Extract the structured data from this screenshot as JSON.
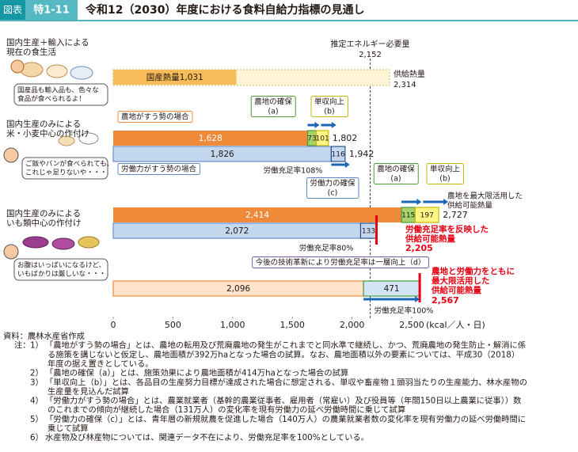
{
  "header": {
    "badge_label": "図表",
    "badge_number": "特1-11",
    "title": "令和12（2030）年度における食料自給力指標の見通し"
  },
  "panels": [
    {
      "label": [
        "国内生産＋輸入による",
        "現在の食生活"
      ],
      "speech": [
        "国産品も輸入品も、色々な",
        "食品が食べられるよ！"
      ]
    },
    {
      "label": [
        "国内生産のみによる",
        "米・小麦中心の作付け"
      ],
      "speech": [
        "ご飯やパンが食べられても、",
        "これじゃ足りないや・・・"
      ]
    },
    {
      "label": [
        "国内生産のみによる",
        "いも類中心の作付け"
      ],
      "speech": [
        "お腹はいっぱいになるけど、",
        "いもばかりは厳しいな・・・"
      ]
    }
  ],
  "chart_data": {
    "type": "bar",
    "xlim": [
      0,
      2500
    ],
    "xticks": [
      0,
      500,
      {
        "value": 1000,
        "label": "1,000"
      },
      {
        "value": 1500,
        "label": "1,500"
      },
      {
        "value": 2000,
        "label": "2,000"
      },
      {
        "value": 2500,
        "label": "2,500"
      }
    ],
    "x_label": "(kcal／人・日)",
    "reference": {
      "label": "推定エネルギー必要量",
      "value": 2152,
      "value_label": "2,152"
    },
    "bars": [
      {
        "segments": [
          {
            "value": 1031,
            "label": "国産熱量1,031",
            "color": "#f7bb59"
          }
        ],
        "supply": {
          "name": "供給熱量",
          "value": 2314,
          "label": "2,314",
          "color": "#fdf5d6",
          "border": "#d9b35e"
        }
      },
      {
        "segments": [
          {
            "value": 1628,
            "label": "1,628",
            "color": "#ef8a3a"
          },
          {
            "value": 73,
            "label": "73",
            "color": "#a6d26a",
            "border": "#4e9a2f"
          },
          {
            "value": 101,
            "label": "101",
            "color": "#fff685",
            "border": "#c9b800"
          }
        ],
        "total": {
          "value": 1802,
          "label": "1,802"
        }
      },
      {
        "segments": [
          {
            "value": 1826,
            "label": "1,826",
            "color": "#c3d7ef",
            "border": "#6a8fc7"
          },
          {
            "value": 116,
            "label": "116",
            "color": "#c3d7ef",
            "border": "#2c4f8c"
          }
        ],
        "total": {
          "value": 1942,
          "label": "1,942"
        }
      },
      {
        "segments": [
          {
            "value": 2414,
            "label": "2,414",
            "color": "#ef8a3a"
          },
          {
            "value": 115,
            "label": "115",
            "color": "#a6d26a",
            "border": "#4e9a2f"
          },
          {
            "value": 197,
            "label": "197",
            "color": "#fff685",
            "border": "#c9b800"
          }
        ],
        "total": {
          "value": 2727,
          "label": "2,727"
        }
      },
      {
        "segments": [
          {
            "value": 2072,
            "label": "2,072",
            "color": "#c3d7ef",
            "border": "#6a8fc7"
          },
          {
            "value": 133,
            "label": "133",
            "color": "#c3d7ef",
            "border": "#2c4f8c"
          }
        ],
        "total": {
          "value": 2205,
          "label": "2,205",
          "color": "#e60012"
        }
      },
      {
        "segments": [
          {
            "value": 2096,
            "label": "2,096",
            "color": "#fde3cc",
            "border": "#ef8a3a"
          },
          {
            "value": 471,
            "label": "471",
            "color": "#d3e4f5",
            "border": "#3f9a3a"
          }
        ],
        "total": {
          "value": 2567,
          "label": "2,567",
          "color": "#e60012"
        }
      }
    ],
    "annotations": [
      {
        "lines": [
          "農地がすう勢の場合"
        ]
      },
      {
        "lines": [
          "労働力がすう勢の場合"
        ]
      },
      {
        "lines": [
          "農地の確保",
          "(a)"
        ]
      },
      {
        "lines": [
          "単収向上",
          "(b)"
        ]
      },
      {
        "lines": [
          "労働充足率108%"
        ]
      },
      {
        "lines": [
          "労働力の確保",
          "(c)"
        ]
      },
      {
        "lines": [
          "農地の確保",
          "(a)"
        ]
      },
      {
        "lines": [
          "単収向上",
          "(b)"
        ]
      },
      {
        "lines": [
          "農地を最大限活用した",
          "供給可能熱量"
        ]
      },
      {
        "lines": [
          "労働充足率を反映した",
          "供給可能熱量"
        ]
      },
      {
        "lines": [
          "労働充足率80%"
        ]
      },
      {
        "lines": [
          "今後の技術革新により労働充足率は一層向上（d）"
        ]
      },
      {
        "lines": [
          "農地と労働力をともに",
          "最大限活用した",
          "供給可能熱量"
        ]
      },
      {
        "lines": [
          "労働充足率100%"
        ]
      }
    ]
  },
  "source": "資料：農林水産省作成",
  "notes_prefix": "注：",
  "notes": [
    {
      "number": "1）",
      "lines": [
        "「農地がすう勢の場合」とは、農地の転用及び荒廃農地の発生がこれまでと同水準で継続し、かつ、荒廃農地の発生防止・解消に係",
        "る施策を講じないと仮定し、農地面積が392万haとなった場合の試算。なお、農地面積以外の要素については、平成30（2018）",
        "年度の据え置きとしている。"
      ]
    },
    {
      "number": "2）",
      "lines": [
        "「農地の確保（a）」とは、施策効果により農地面積が414万haとなった場合の試算"
      ]
    },
    {
      "number": "3）",
      "lines": [
        "「単収向上（b）」とは、各品目の生産努力目標が達成された場合に想定される、単収や畜産物１頭羽当たりの生産能力、林水産物の",
        "生産量を見込んだ試算"
      ]
    },
    {
      "number": "4）",
      "lines": [
        "「労働力がすう勢の場合」とは、農業就業者（基幹的農業従事者、雇用者（常雇い）及び役員等（年間150日以上農業に従事））数",
        "のこれまでの傾向が継続した場合（131万人）の変化率を現有労働力の延べ労働時間に乗じて試算"
      ]
    },
    {
      "number": "5）",
      "lines": [
        "「労働力の確保（c）」とは、青年層の新規就農を促進した場合（140万人）の農業就業者数の変化率を現有労働力の延べ労働時間に",
        "乗じて試算"
      ]
    },
    {
      "number": "6）",
      "lines": [
        "水産物及び林産物については、関連データ不在により、労働充足率を100%としている。"
      ]
    }
  ]
}
